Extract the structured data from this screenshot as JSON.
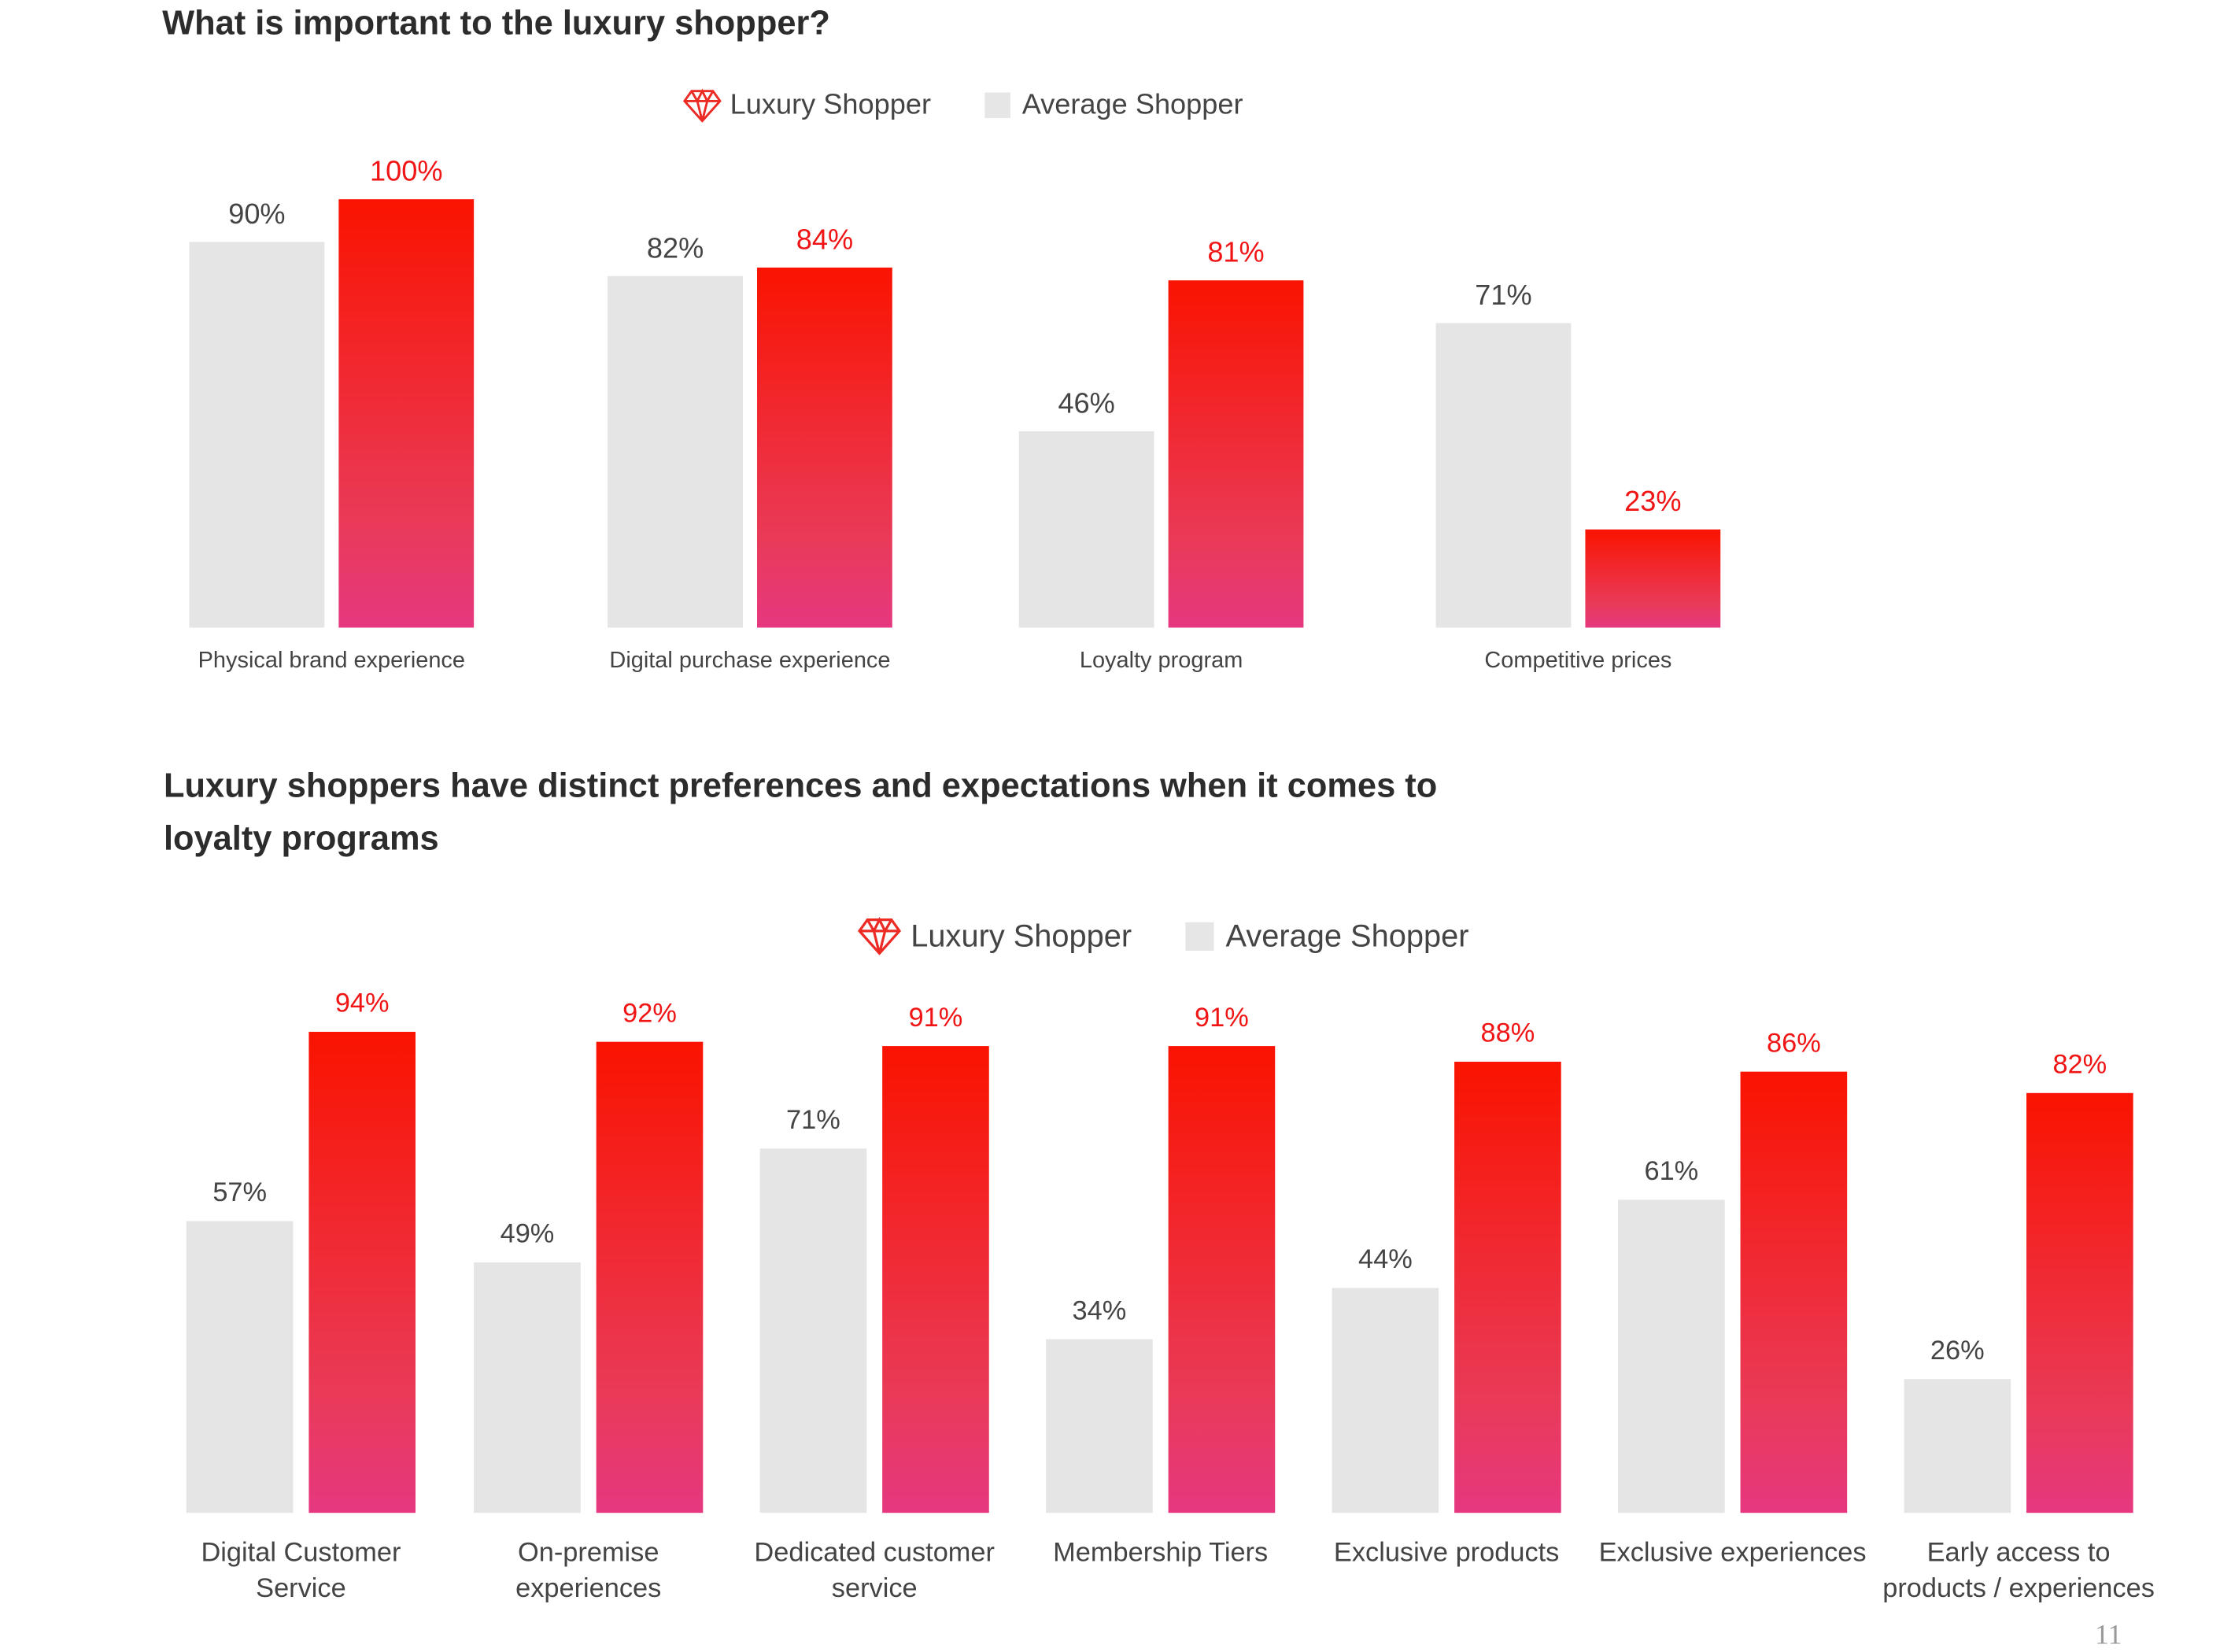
{
  "page_number": "11",
  "colors": {
    "luxury_top": "#fa1300",
    "luxury_bottom": "#e6387f",
    "average": "#e5e5e5",
    "luxury_label": "#f01414"
  },
  "legend_icons": {
    "luxury": "diamond-icon",
    "average": "gray-square"
  },
  "chart_data": [
    {
      "type": "bar",
      "title": "What is important to the luxury shopper?",
      "legend": [
        "Luxury Shopper",
        "Average Shopper"
      ],
      "legend_placement": "top-center",
      "grid": false,
      "ylim": [
        0,
        100
      ],
      "categories": [
        "Physical brand experience",
        "Digital purchase experience",
        "Loyalty program",
        "Competitive prices"
      ],
      "series": [
        {
          "name": "Average Shopper",
          "values": [
            90,
            82,
            46,
            71
          ],
          "labels": [
            "90%",
            "82%",
            "46%",
            "71%"
          ]
        },
        {
          "name": "Luxury Shopper",
          "values": [
            100,
            84,
            81,
            23
          ],
          "labels": [
            "100%",
            "84%",
            "81%",
            "23%"
          ]
        }
      ]
    },
    {
      "type": "bar",
      "title": "Luxury shoppers have distinct preferences and expectations when it comes to loyalty programs",
      "legend": [
        "Luxury Shopper",
        "Average Shopper"
      ],
      "legend_placement": "top-center",
      "grid": false,
      "ylim": [
        0,
        100
      ],
      "categories": [
        "Digital Customer Service",
        "On-premise experiences",
        "Dedicated customer service",
        "Membership Tiers",
        "Exclusive products",
        "Exclusive experiences",
        "Early access to products / experiences"
      ],
      "series": [
        {
          "name": "Average Shopper",
          "values": [
            57,
            49,
            71,
            34,
            44,
            61,
            26
          ],
          "labels": [
            "57%",
            "49%",
            "71%",
            "34%",
            "44%",
            "61%",
            "26%"
          ]
        },
        {
          "name": "Luxury Shopper",
          "values": [
            94,
            92,
            91,
            91,
            88,
            86,
            82
          ],
          "labels": [
            "94%",
            "92%",
            "91%",
            "91%",
            "88%",
            "86%",
            "82%"
          ]
        }
      ]
    }
  ]
}
